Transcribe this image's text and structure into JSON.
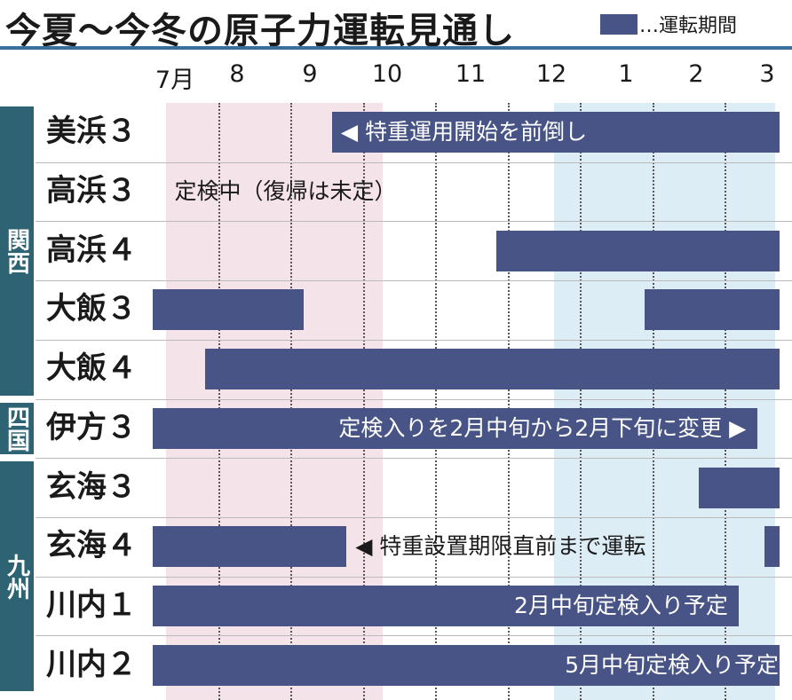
{
  "header": {
    "title": "今夏〜今冬の原子力運転見通し"
  },
  "legend": {
    "label": "…運転期間"
  },
  "colors": {
    "bar": "#485486",
    "pink": "#f4e4ea",
    "blue": "#ddedf5",
    "region": "#2d6373",
    "rule": "#3c6e9c"
  },
  "chart_data": {
    "type": "gantt",
    "title": "今夏〜今冬の原子力運転見通し",
    "months": [
      "7月",
      "8",
      "9",
      "10",
      "11",
      "12",
      "1",
      "2",
      "3"
    ],
    "period_labels": [
      "7月",
      "8",
      "9",
      "10",
      "11",
      "12",
      "1",
      "2",
      "3"
    ],
    "regions": [
      {
        "name": "関西",
        "first_row": 0,
        "last_row": 4
      },
      {
        "name": "四国",
        "first_row": 5,
        "last_row": 5
      },
      {
        "name": "九州",
        "first_row": 6,
        "last_row": 9
      }
    ],
    "rows": [
      {
        "name": "美浜３",
        "bars": [
          {
            "start": 2.48,
            "end": 8.75
          }
        ],
        "note": {
          "text": "◀ 特重運用開始を前倒し",
          "at": 2.6,
          "align": "left",
          "style": "white"
        }
      },
      {
        "name": "高浜３",
        "bars": [],
        "note": {
          "text": "定検中（復帰は未定）",
          "at": 0.3,
          "align": "left",
          "style": "dark"
        }
      },
      {
        "name": "高浜４",
        "bars": [
          {
            "start": 4.75,
            "end": 8.75
          }
        ]
      },
      {
        "name": "大飯３",
        "bars": [
          {
            "start": 0.0,
            "end": 2.08
          },
          {
            "start": 6.8,
            "end": 8.75
          }
        ]
      },
      {
        "name": "大飯４",
        "bars": [
          {
            "start": 0.72,
            "end": 8.75
          }
        ]
      },
      {
        "name": "伊方３",
        "bars": [
          {
            "start": 0.0,
            "end": 8.35
          }
        ],
        "note": {
          "text": "定検入りを2月中旬から2月下旬に変更 ▶",
          "at": 8.2,
          "align": "right",
          "style": "white"
        }
      },
      {
        "name": "玄海３",
        "bars": [
          {
            "start": 7.55,
            "end": 8.75
          }
        ]
      },
      {
        "name": "玄海４",
        "bars": [
          {
            "start": 0.0,
            "end": 2.67
          },
          {
            "start": 8.45,
            "end": 8.75
          }
        ],
        "note": {
          "text": "◀ 特重設置期限直前まで運転",
          "at": 2.8,
          "align": "left",
          "style": "dark"
        }
      },
      {
        "name": "川内１",
        "bars": [
          {
            "start": 0.0,
            "end": 8.1
          }
        ],
        "note": {
          "text": "2月中旬定検入り予定",
          "at": 7.95,
          "align": "right",
          "style": "white"
        }
      },
      {
        "name": "川内２",
        "bars": [
          {
            "start": 0.0,
            "end": 8.75
          }
        ],
        "note": {
          "text": "5月中旬定検入り予定",
          "at": 8.65,
          "align": "right",
          "style": "white"
        }
      }
    ],
    "shaded_periods": [
      {
        "start": 0.18,
        "end": 3.18,
        "color": "#f4e4ea"
      },
      {
        "start": 5.55,
        "end": 8.6,
        "color": "#ddedf5"
      }
    ],
    "gridlines": "dotted vertical at month boundaries"
  }
}
